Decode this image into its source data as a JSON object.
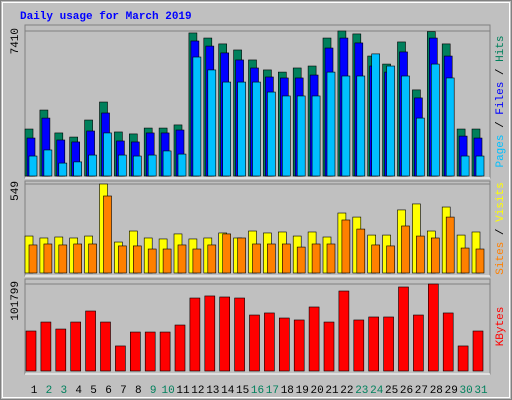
{
  "chart_data": [
    {
      "type": "bar",
      "title": "Daily usage for March 2019",
      "legend_separator": " / ",
      "ylim": [
        0,
        7410
      ],
      "yticks": [
        7410
      ],
      "series": [
        {
          "name": "Hits",
          "color": "#00805c",
          "values": [
            2400,
            3370,
            2200,
            1990,
            2860,
            3780,
            2250,
            2150,
            2450,
            2450,
            2610,
            7310,
            7050,
            6750,
            6440,
            5930,
            5420,
            5310,
            5520,
            5620,
            7050,
            7410,
            7260,
            6130,
            5720,
            6850,
            4400,
            7380,
            6750,
            2400,
            2400
          ]
        },
        {
          "name": "Files",
          "color": "#0000ff",
          "values": [
            1940,
            2960,
            1840,
            1740,
            2300,
            3220,
            1790,
            1740,
            2200,
            2200,
            2350,
            6900,
            6640,
            6290,
            5930,
            5520,
            5060,
            5010,
            5010,
            5160,
            6540,
            7050,
            6800,
            5620,
            5310,
            6340,
            3990,
            7050,
            6130,
            2040,
            1940
          ]
        },
        {
          "name": "Pages",
          "color": "#00c0ff",
          "values": [
            1020,
            1330,
            660,
            720,
            1070,
            2200,
            1070,
            1020,
            1070,
            1280,
            1120,
            6080,
            5420,
            4800,
            4800,
            4800,
            4290,
            4090,
            4090,
            4090,
            5310,
            5110,
            5110,
            6240,
            5620,
            5110,
            2960,
            5720,
            5010,
            1020,
            1020
          ]
        }
      ]
    },
    {
      "type": "bar",
      "legend_separator": " / ",
      "ylim": [
        0,
        549
      ],
      "yticks": [
        549
      ],
      "series": [
        {
          "name": "Visits",
          "color": "#ffff00",
          "values": [
            228,
            216,
            222,
            216,
            228,
            549,
            191,
            259,
            216,
            210,
            241,
            210,
            216,
            247,
            216,
            259,
            247,
            253,
            228,
            253,
            222,
            370,
            345,
            234,
            234,
            389,
            426,
            259,
            407,
            234,
            253
          ]
        },
        {
          "name": "Sites",
          "color": "#ff8000",
          "values": [
            173,
            179,
            173,
            179,
            179,
            475,
            167,
            167,
            148,
            148,
            173,
            148,
            173,
            241,
            216,
            179,
            179,
            179,
            160,
            179,
            179,
            327,
            271,
            173,
            167,
            290,
            228,
            216,
            345,
            154,
            148
          ]
        }
      ]
    },
    {
      "type": "bar",
      "ylim": [
        0,
        101799
      ],
      "yticks": [
        101799
      ],
      "categories": [
        "1",
        "2",
        "3",
        "4",
        "5",
        "6",
        "7",
        "8",
        "9",
        "10",
        "11",
        "12",
        "13",
        "14",
        "15",
        "16",
        "17",
        "18",
        "19",
        "20",
        "21",
        "22",
        "23",
        "24",
        "25",
        "26",
        "27",
        "28",
        "29",
        "30",
        "31"
      ],
      "category_colors": [
        "#000000",
        "#00805c",
        "#00805c",
        "#000000",
        "#000000",
        "#000000",
        "#000000",
        "#000000",
        "#00805c",
        "#00805c",
        "#000000",
        "#000000",
        "#000000",
        "#000000",
        "#000000",
        "#00805c",
        "#00805c",
        "#000000",
        "#000000",
        "#000000",
        "#000000",
        "#000000",
        "#00805c",
        "#00805c",
        "#000000",
        "#000000",
        "#000000",
        "#000000",
        "#000000",
        "#00805c",
        "#00805c"
      ],
      "series": [
        {
          "name": "KBytes",
          "color": "#ff0000",
          "values": [
            46800,
            57300,
            49100,
            57300,
            70200,
            57300,
            29300,
            45600,
            45600,
            45600,
            53800,
            85400,
            87800,
            86600,
            85400,
            65500,
            67900,
            62000,
            59700,
            74900,
            57300,
            93600,
            59700,
            63200,
            63200,
            98300,
            65500,
            101799,
            67900,
            29300,
            46800
          ]
        }
      ]
    }
  ]
}
